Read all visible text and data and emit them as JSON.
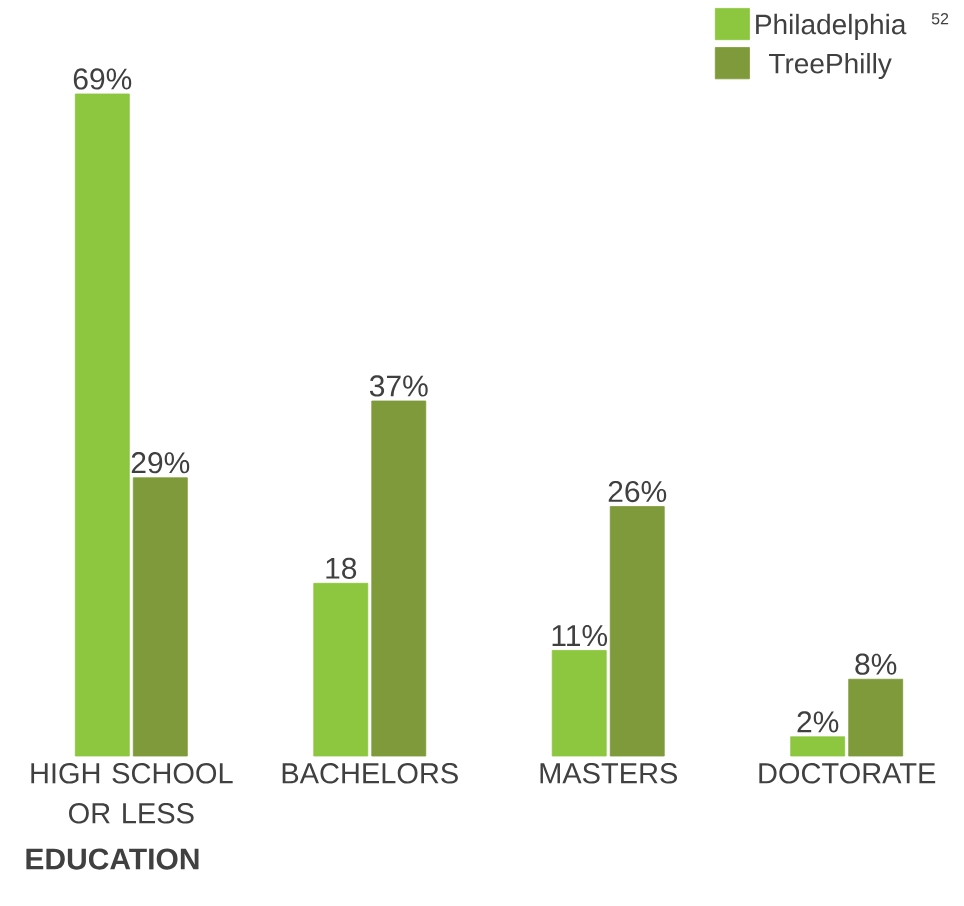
{
  "chart_data": {
    "type": "bar",
    "xlabel": "EDUCATION",
    "categories": [
      "HIGH SCHOOL OR LESS",
      "BACHELORS",
      "MASTERS",
      "DOCTORATE"
    ],
    "series": [
      {
        "name": "Philadelphia",
        "color": "#8dc63f",
        "values": [
          69,
          18,
          11,
          2
        ],
        "value_labels": [
          "69%",
          "18",
          "11%",
          "2%"
        ]
      },
      {
        "name": "TreePhilly",
        "color": "#7f9a3a",
        "values": [
          29,
          37,
          26,
          8
        ],
        "value_labels": [
          "29%",
          "37%",
          "26%",
          "8%"
        ]
      }
    ],
    "legend": "top right",
    "annotations": [
      "52"
    ]
  }
}
